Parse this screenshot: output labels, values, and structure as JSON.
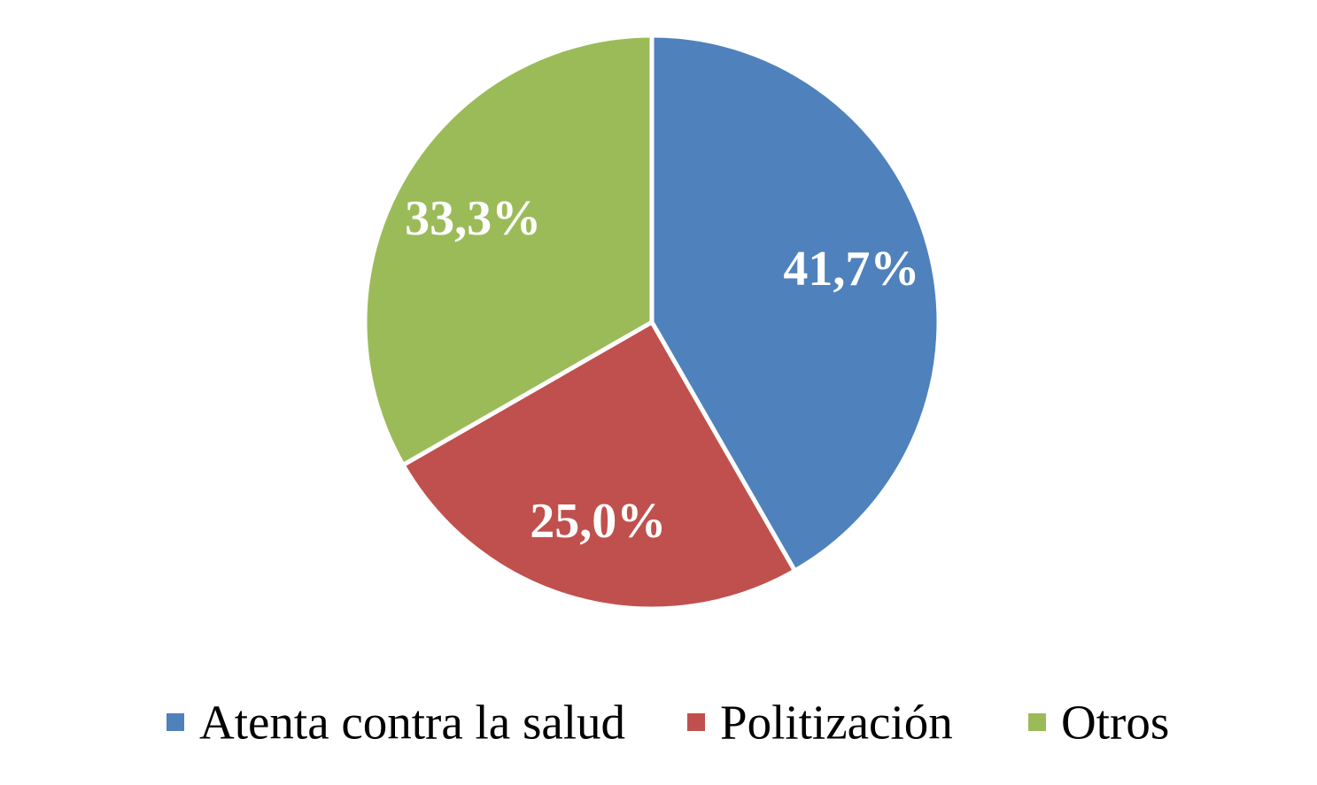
{
  "chart_data": {
    "type": "pie",
    "title": "",
    "categories": [
      "Atenta contra la salud",
      "Politización",
      "Otros"
    ],
    "values": [
      41.7,
      25.0,
      33.3
    ],
    "data_labels": [
      "41,7%",
      "25,0%",
      "33,3%"
    ],
    "colors": [
      "#4F81BD",
      "#C0504D",
      "#9BBB59"
    ],
    "start_angle_deg": 0,
    "direction": "clockwise",
    "legend_position": "bottom"
  }
}
